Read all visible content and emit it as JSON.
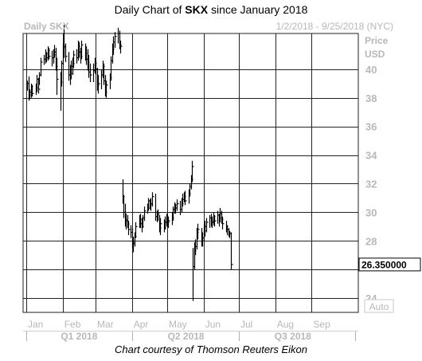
{
  "title": {
    "prefix": "Daily Chart of ",
    "symbol": "SKX",
    "suffix": " since January 2018"
  },
  "chart_header": {
    "left": "Daily SKX",
    "right": "1/2/2018 - 9/25/2018 (NYC)"
  },
  "price_axis": {
    "label_line1": "Price",
    "label_line2": "USD"
  },
  "auto_button": "Auto",
  "caption": "Chart courtesy of Thomson Reuters Eikon",
  "colors": {
    "bars": "#000000",
    "grid": "#222222",
    "axis_text": "#b8b8b8",
    "panel_bg": "#ffffff"
  },
  "chart_data": {
    "type": "ohlc",
    "title": "Daily Chart of SKX since January 2018",
    "xlabel": "",
    "ylabel": "Price USD",
    "ylim": [
      23,
      42.5
    ],
    "y_ticks": [
      24,
      26,
      28,
      30,
      32,
      34,
      36,
      38,
      40
    ],
    "y_tick_labels": [
      "24",
      "",
      "28",
      "30",
      "32",
      "34",
      "36",
      "38",
      "40"
    ],
    "last_price_label": "26.350000",
    "last_price": 26.35,
    "x_range_days": [
      0,
      280
    ],
    "month_ticks": [
      {
        "label": "Jan",
        "day": 0
      },
      {
        "label": "Feb",
        "day": 31
      },
      {
        "label": "Mar",
        "day": 59
      },
      {
        "label": "Apr",
        "day": 90
      },
      {
        "label": "May",
        "day": 120
      },
      {
        "label": "Jun",
        "day": 151
      },
      {
        "label": "Jul",
        "day": 181
      },
      {
        "label": "Aug",
        "day": 212
      },
      {
        "label": "Sep",
        "day": 243
      }
    ],
    "quarter_labels": [
      {
        "label": "Q1 2018",
        "day": 45
      },
      {
        "label": "Q2 2018",
        "day": 136
      },
      {
        "label": "Q3 2018",
        "day": 227
      }
    ],
    "grid": true,
    "series": [
      {
        "name": "SKX",
        "style": "ohlc-ticks",
        "points": [
          [
            1,
            39.2,
            38.5,
            39.0
          ],
          [
            2,
            39.5,
            37.8,
            38.2
          ],
          [
            3,
            38.6,
            37.9,
            38.4
          ],
          [
            4,
            39.0,
            38.0,
            38.8
          ],
          [
            5,
            38.9,
            38.1,
            38.3
          ],
          [
            8,
            39.0,
            38.2,
            38.7
          ],
          [
            9,
            39.6,
            38.4,
            39.3
          ],
          [
            10,
            39.4,
            38.3,
            38.6
          ],
          [
            11,
            39.8,
            38.9,
            39.6
          ],
          [
            12,
            40.8,
            39.5,
            40.5
          ],
          [
            15,
            41.0,
            40.3,
            40.7
          ],
          [
            16,
            41.4,
            40.4,
            41.1
          ],
          [
            17,
            41.2,
            40.5,
            40.8
          ],
          [
            18,
            41.6,
            40.6,
            41.3
          ],
          [
            19,
            41.5,
            40.7,
            40.9
          ],
          [
            22,
            41.3,
            40.2,
            40.8
          ],
          [
            23,
            41.4,
            40.4,
            41.0
          ],
          [
            24,
            41.7,
            40.8,
            41.2
          ],
          [
            25,
            41.5,
            39.9,
            40.2
          ],
          [
            26,
            40.8,
            38.2,
            39.3
          ],
          [
            29,
            39.8,
            37.1,
            39.1
          ],
          [
            30,
            40.6,
            38.8,
            40.4
          ],
          [
            31,
            41.8,
            40.3,
            41.5
          ],
          [
            32,
            43.1,
            40.8,
            41.6
          ],
          [
            33,
            41.8,
            40.5,
            40.9
          ],
          [
            36,
            41.2,
            39.2,
            39.6
          ],
          [
            37,
            40.3,
            38.9,
            39.7
          ],
          [
            38,
            40.6,
            39.3,
            40.2
          ],
          [
            39,
            40.8,
            39.6,
            40.4
          ],
          [
            40,
            41.3,
            40.1,
            41.0
          ],
          [
            43,
            41.4,
            40.4,
            40.8
          ],
          [
            44,
            42.0,
            40.6,
            41.6
          ],
          [
            45,
            41.9,
            40.8,
            41.2
          ],
          [
            46,
            41.5,
            40.4,
            40.9
          ],
          [
            47,
            42.0,
            40.7,
            41.7
          ],
          [
            50,
            41.8,
            40.6,
            41.1
          ],
          [
            51,
            41.6,
            40.3,
            40.7
          ],
          [
            52,
            41.4,
            39.9,
            40.5
          ],
          [
            53,
            41.0,
            39.4,
            39.8
          ],
          [
            54,
            40.4,
            39.1,
            39.6
          ],
          [
            57,
            40.4,
            39.1,
            39.9
          ],
          [
            58,
            40.8,
            39.7,
            40.4
          ],
          [
            59,
            40.6,
            39.6,
            40.0
          ],
          [
            60,
            40.1,
            38.5,
            38.9
          ],
          [
            61,
            39.6,
            38.3,
            39.0
          ],
          [
            64,
            40.0,
            38.6,
            39.6
          ],
          [
            65,
            40.6,
            39.4,
            40.2
          ],
          [
            66,
            40.4,
            38.9,
            39.2
          ],
          [
            67,
            39.6,
            38.1,
            38.4
          ],
          [
            68,
            39.2,
            38.0,
            38.9
          ],
          [
            71,
            39.7,
            38.6,
            39.4
          ],
          [
            72,
            40.9,
            39.2,
            40.6
          ],
          [
            73,
            41.8,
            40.4,
            41.4
          ],
          [
            74,
            42.3,
            41.0,
            41.9
          ],
          [
            75,
            42.6,
            41.5,
            42.3
          ],
          [
            78,
            42.9,
            41.8,
            42.5
          ],
          [
            79,
            42.7,
            41.4,
            41.7
          ],
          [
            80,
            42.0,
            41.1,
            41.6
          ],
          [
            82,
            32.3,
            30.6,
            31.1
          ],
          [
            83,
            31.2,
            29.6,
            30.0
          ],
          [
            84,
            30.6,
            29.0,
            29.5
          ],
          [
            85,
            29.9,
            28.8,
            29.4
          ],
          [
            86,
            29.8,
            28.9,
            29.2
          ],
          [
            87,
            29.4,
            28.4,
            28.8
          ],
          [
            89,
            29.1,
            28.2,
            28.6
          ],
          [
            90,
            28.9,
            27.5,
            27.9
          ],
          [
            91,
            28.3,
            27.2,
            27.8
          ],
          [
            92,
            28.6,
            27.6,
            28.3
          ],
          [
            93,
            29.3,
            28.2,
            29.0
          ],
          [
            96,
            29.8,
            28.9,
            29.5
          ],
          [
            97,
            29.9,
            28.9,
            29.2
          ],
          [
            98,
            29.6,
            28.6,
            29.0
          ],
          [
            99,
            29.8,
            28.9,
            29.6
          ],
          [
            100,
            30.4,
            29.4,
            30.1
          ],
          [
            103,
            30.6,
            29.9,
            30.3
          ],
          [
            104,
            31.0,
            30.1,
            30.8
          ],
          [
            105,
            30.9,
            30.2,
            30.5
          ],
          [
            106,
            31.0,
            30.1,
            30.6
          ],
          [
            107,
            31.4,
            30.4,
            31.1
          ],
          [
            110,
            31.3,
            29.4,
            29.7
          ],
          [
            111,
            30.1,
            29.3,
            29.8
          ],
          [
            112,
            30.2,
            29.4,
            29.9
          ],
          [
            113,
            29.8,
            28.6,
            28.9
          ],
          [
            114,
            29.6,
            28.4,
            29.2
          ],
          [
            117,
            29.5,
            28.6,
            28.9
          ],
          [
            118,
            29.7,
            28.8,
            29.3
          ],
          [
            119,
            29.9,
            29.0,
            29.6
          ],
          [
            120,
            29.8,
            29.0,
            29.3
          ],
          [
            121,
            29.7,
            28.9,
            29.4
          ],
          [
            124,
            30.0,
            29.1,
            29.6
          ],
          [
            125,
            30.4,
            29.4,
            30.2
          ],
          [
            126,
            30.7,
            29.9,
            30.5
          ],
          [
            127,
            30.6,
            29.9,
            30.3
          ],
          [
            128,
            30.9,
            30.1,
            30.6
          ],
          [
            131,
            30.8,
            29.8,
            30.2
          ],
          [
            132,
            31.0,
            30.0,
            30.6
          ],
          [
            133,
            31.3,
            30.4,
            30.9
          ],
          [
            134,
            31.4,
            30.7,
            31.1
          ],
          [
            135,
            31.5,
            30.5,
            30.8
          ],
          [
            138,
            31.6,
            30.6,
            31.3
          ],
          [
            139,
            32.0,
            31.1,
            31.8
          ],
          [
            140,
            32.6,
            31.6,
            32.3
          ],
          [
            141,
            33.6,
            32.1,
            33.2
          ],
          [
            142,
            27.5,
            23.8,
            26.2
          ],
          [
            143,
            27.9,
            26.0,
            27.3
          ],
          [
            144,
            28.1,
            27.0,
            27.6
          ],
          [
            145,
            28.9,
            27.4,
            28.6
          ],
          [
            146,
            29.2,
            28.1,
            28.8
          ],
          [
            149,
            28.9,
            27.6,
            28.0
          ],
          [
            150,
            28.6,
            27.6,
            28.2
          ],
          [
            151,
            29.1,
            28.0,
            28.7
          ],
          [
            152,
            29.4,
            28.3,
            29.0
          ],
          [
            153,
            29.6,
            28.6,
            29.3
          ],
          [
            156,
            29.8,
            28.9,
            29.6
          ],
          [
            157,
            29.9,
            29.0,
            29.4
          ],
          [
            158,
            29.7,
            28.9,
            29.3
          ],
          [
            159,
            30.0,
            29.1,
            29.7
          ],
          [
            160,
            29.8,
            29.0,
            29.4
          ],
          [
            163,
            30.1,
            29.2,
            29.8
          ],
          [
            164,
            29.9,
            29.0,
            29.6
          ],
          [
            165,
            30.3,
            29.3,
            29.9
          ],
          [
            166,
            30.1,
            29.2,
            29.5
          ],
          [
            167,
            29.7,
            28.8,
            29.2
          ],
          [
            170,
            29.4,
            28.6,
            29.0
          ],
          [
            171,
            29.1,
            28.4,
            28.8
          ],
          [
            172,
            28.9,
            28.3,
            28.6
          ],
          [
            173,
            28.7,
            28.2,
            28.5
          ],
          [
            174,
            28.6,
            26.0,
            26.35
          ]
        ]
      }
    ]
  }
}
